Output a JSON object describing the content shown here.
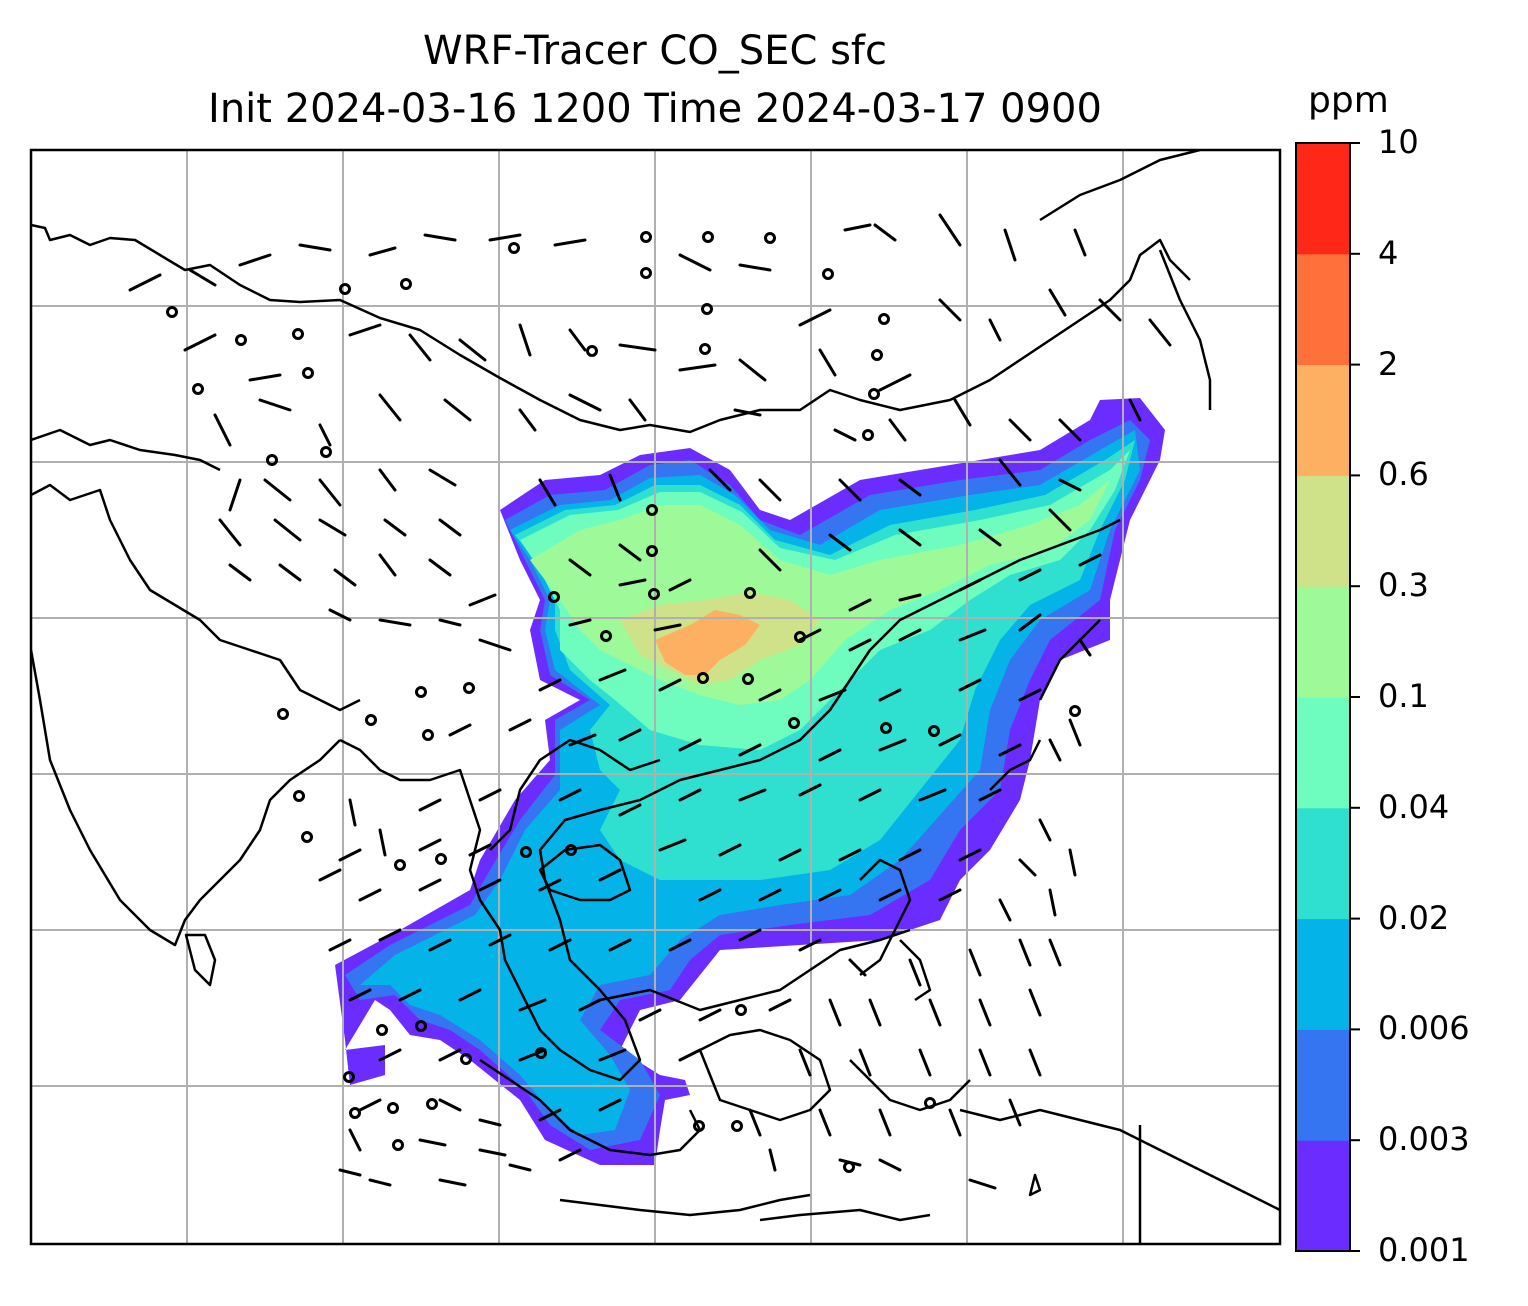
{
  "title": {
    "line1": "WRF-Tracer CO_SEC sfc",
    "line2": "Init 2024-03-16 1200 Time 2024-03-17 0900"
  },
  "colorbar": {
    "unit": "ppm",
    "levels": [
      "0.001",
      "0.003",
      "0.006",
      "0.02",
      "0.04",
      "0.1",
      "0.3",
      "0.6",
      "2",
      "4",
      "10"
    ],
    "colors": [
      "#6a2cff",
      "#3575f2",
      "#04b4e8",
      "#2fe0d0",
      "#6ffdbf",
      "#9efa98",
      "#cfe28a",
      "#fdb062",
      "#ff703b",
      "#ff2818"
    ]
  },
  "map": {
    "gridline_color": "#b0b0b0",
    "coastline_color": "#000000",
    "wind_barbs": "black",
    "calm_marker": "circle"
  }
}
